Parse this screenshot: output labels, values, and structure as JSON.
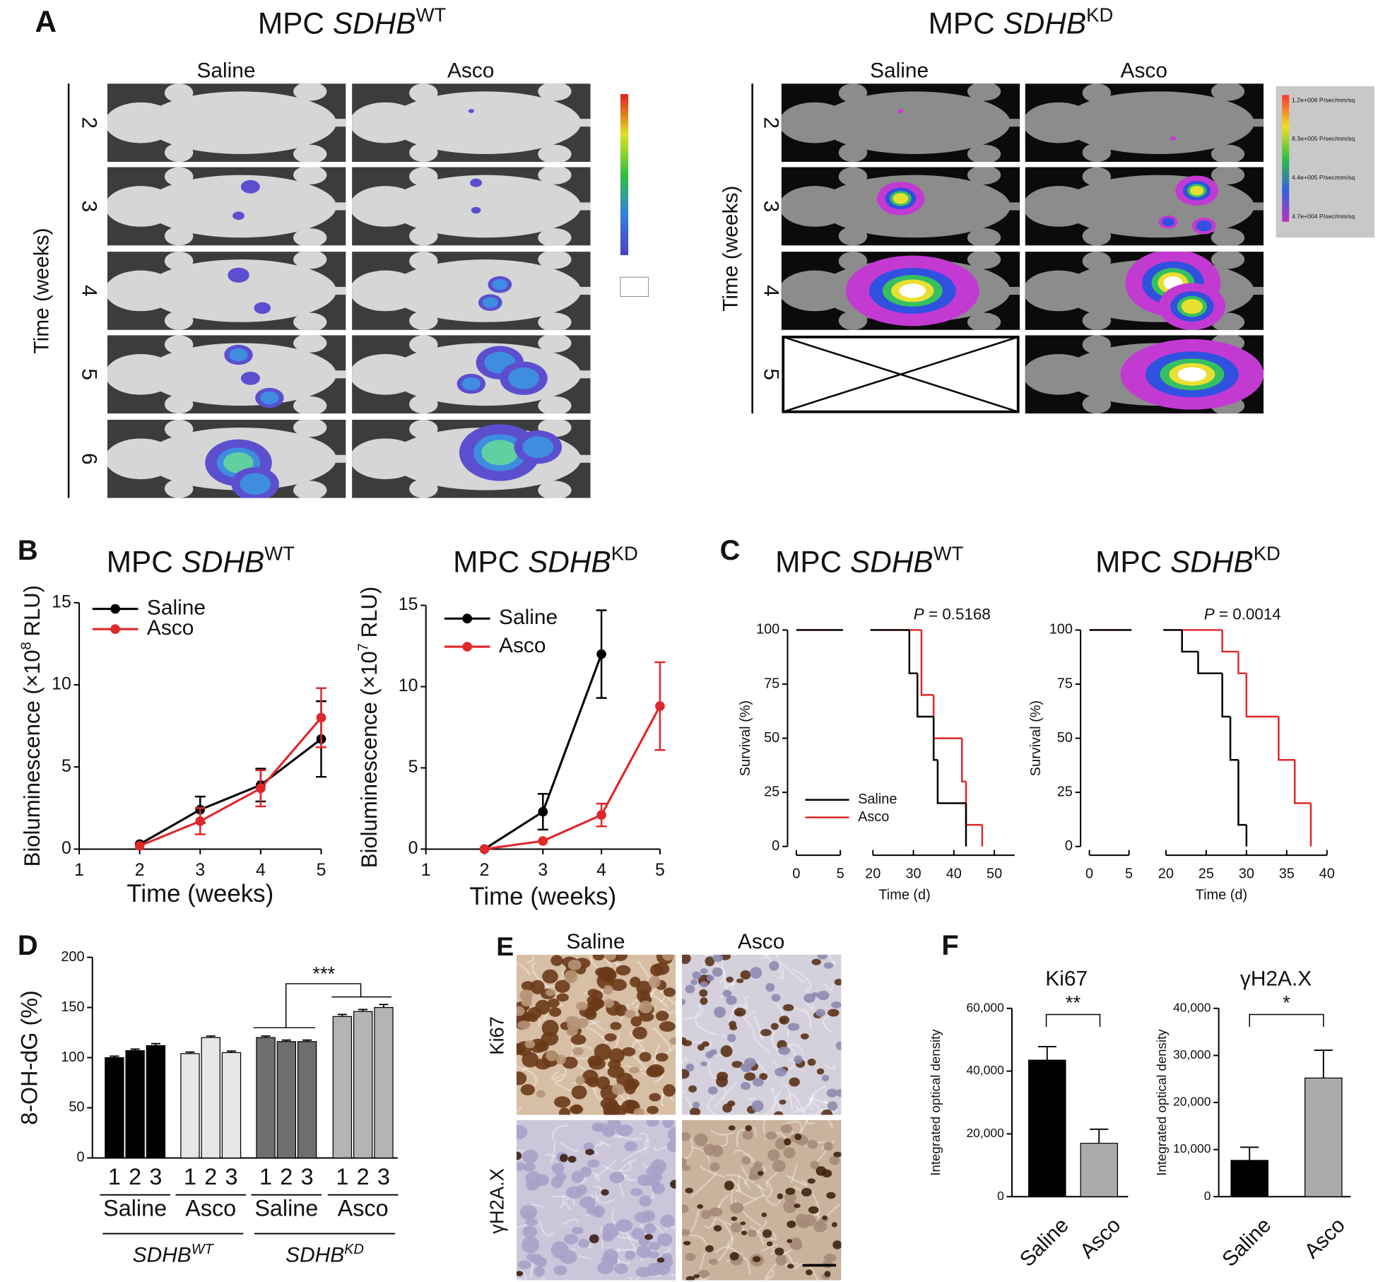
{
  "panel_a": {
    "label": "A",
    "panels": [
      {
        "title": {
          "main": "MPC",
          "gene": "SDHB",
          "sup": "WT"
        },
        "columns": [
          "Saline",
          "Asco"
        ],
        "row_title": "Time (weeks)",
        "rows": [
          "2",
          "3",
          "4",
          "5",
          "6"
        ]
      },
      {
        "title": {
          "main": "MPC",
          "gene": "SDHB",
          "sup": "KD"
        },
        "columns": [
          "Saline",
          "Asco"
        ],
        "row_title": "Time (weeks)",
        "rows": [
          "2",
          "3",
          "4",
          "5"
        ],
        "colorbar_labels": [
          "1.2e+006 P/sec/mm/sq",
          "8.3e+005 P/sec/mm/sq",
          "4.4e+005 P/sec/mm/sq",
          "4.7e+004 P/sec/mm/sq"
        ]
      }
    ]
  },
  "chart_data": [
    {
      "type": "line",
      "panel_label": "B",
      "title": {
        "main": "MPC",
        "gene": "SDHB",
        "sup": "WT"
      },
      "xlabel": "Time (weeks)",
      "ylabel": {
        "text": "Bioluminescence (×10",
        "sup": "8",
        "end": "RLU)"
      },
      "x": [
        2,
        3,
        4,
        5
      ],
      "xlim": [
        1,
        5
      ],
      "xticks": [
        1,
        2,
        3,
        4,
        5
      ],
      "ylim": [
        0,
        15
      ],
      "yticks": [
        0,
        5,
        10,
        15
      ],
      "legend": "upper left",
      "series": [
        {
          "name": "Saline",
          "color": "#000000",
          "values": [
            0.3,
            2.4,
            3.9,
            6.7
          ],
          "errors": [
            null,
            0.8,
            1.0,
            2.3
          ]
        },
        {
          "name": "Asco",
          "color": "#e0272a",
          "values": [
            0.2,
            1.7,
            3.7,
            8.0
          ],
          "errors": [
            null,
            0.8,
            1.1,
            1.8
          ]
        }
      ]
    },
    {
      "type": "line",
      "title": {
        "main": "MPC",
        "gene": "SDHB",
        "sup": "KD"
      },
      "xlabel": "Time (weeks)",
      "ylabel": {
        "text": "Bioluminescence (×10",
        "sup": "7",
        "end": "RLU)"
      },
      "x": [
        2,
        3,
        4,
        5
      ],
      "xlim": [
        1,
        5
      ],
      "xticks": [
        1,
        2,
        3,
        4,
        5
      ],
      "ylim": [
        0,
        15
      ],
      "yticks": [
        0,
        5,
        10,
        15
      ],
      "legend": "upper left",
      "series": [
        {
          "name": "Saline",
          "color": "#000000",
          "values": [
            0.0,
            2.3,
            12.0,
            null
          ],
          "errors": [
            null,
            1.1,
            2.7,
            null
          ]
        },
        {
          "name": "Asco",
          "color": "#e0272a",
          "values": [
            0.0,
            0.5,
            2.1,
            8.8
          ],
          "errors": [
            null,
            null,
            0.7,
            2.7
          ]
        }
      ]
    },
    {
      "type": "survival",
      "panel_label": "C",
      "title": {
        "main": "MPC",
        "gene": "SDHB",
        "sup": "WT"
      },
      "xlabel": "Time (d)",
      "ylabel": "Survival (%)",
      "annotation": {
        "italic": "P",
        "text": "= 0.5168"
      },
      "xlim": [
        0,
        55
      ],
      "xbreak": [
        5,
        20
      ],
      "xticks": [
        0,
        5,
        20,
        30,
        40,
        50
      ],
      "ylim": [
        0,
        100
      ],
      "yticks": [
        0,
        25,
        50,
        75,
        100
      ],
      "legend": "lower left",
      "series": [
        {
          "name": "Saline",
          "color": "#000000",
          "x": [
            0,
            29,
            31,
            35,
            36,
            43
          ],
          "values": [
            100,
            80,
            60,
            40,
            20,
            0
          ]
        },
        {
          "name": "Asco",
          "color": "#e0272a",
          "x": [
            0,
            32,
            35,
            42,
            43,
            47
          ],
          "values": [
            100,
            70,
            50,
            30,
            10,
            0
          ]
        }
      ]
    },
    {
      "type": "survival",
      "title": {
        "main": "MPC",
        "gene": "SDHB",
        "sup": "KD"
      },
      "xlabel": "Time (d)",
      "ylabel": "Survival (%)",
      "annotation": {
        "italic": "P",
        "text": "= 0.0014"
      },
      "xlim": [
        0,
        40
      ],
      "xbreak": [
        5,
        20
      ],
      "xticks": [
        0,
        5,
        20,
        25,
        30,
        35,
        40
      ],
      "ylim": [
        0,
        100
      ],
      "yticks": [
        0,
        25,
        50,
        75,
        100
      ],
      "series": [
        {
          "color": "#000000",
          "x": [
            0,
            22,
            24,
            27,
            28,
            29,
            30
          ],
          "values": [
            100,
            90,
            80,
            60,
            40,
            10,
            0
          ]
        },
        {
          "color": "#e0272a",
          "x": [
            0,
            27,
            29,
            30,
            34,
            36,
            38
          ],
          "values": [
            100,
            90,
            80,
            60,
            40,
            20,
            0
          ]
        }
      ]
    },
    {
      "type": "bar",
      "panel_label": "D",
      "ylabel": "8-OH-dG (%)",
      "categories": [
        "1",
        "2",
        "3"
      ],
      "ylim": [
        0,
        200
      ],
      "yticks": [
        0,
        50,
        100,
        150,
        200
      ],
      "annotation": "***",
      "series": [
        {
          "name": "Saline",
          "color": "#000000",
          "values": [
            100,
            107,
            112
          ],
          "errors": [
            1.5,
            1.5,
            2
          ]
        },
        {
          "name": "Asco",
          "color": "#e6e6e6",
          "values": [
            104,
            120,
            105
          ],
          "errors": [
            1.5,
            1.5,
            1.5
          ]
        },
        {
          "name": "Saline",
          "color": "#6e6e6e",
          "values": [
            120,
            116,
            116
          ],
          "errors": [
            1.5,
            1.5,
            1.5
          ]
        },
        {
          "name": "Asco",
          "color": "#b4b4b4",
          "values": [
            141,
            146,
            150
          ],
          "errors": [
            2,
            2,
            3
          ]
        }
      ],
      "genotypes": [
        {
          "gene": "SDHB",
          "sup": "WT"
        },
        {
          "gene": "SDHB",
          "sup": "KD"
        }
      ]
    },
    {
      "type": "bar",
      "panel_label": "F",
      "title": "Ki67",
      "ylabel": "Integrated optical density",
      "categories": [
        "Saline",
        "Asco"
      ],
      "values": [
        43500,
        17000
      ],
      "errors": [
        4300,
        4500
      ],
      "colors": [
        "#000000",
        "#aaaaaa"
      ],
      "ylim": [
        0,
        60000
      ],
      "yticks": [
        0,
        {
          "value": 20000,
          "label": "20,000"
        },
        {
          "value": 40000,
          "label": "40,000"
        },
        {
          "value": 60000,
          "label": "60,000"
        }
      ],
      "annotation": "**"
    },
    {
      "type": "bar",
      "title": "γH2A.X",
      "ylabel": "Integrated optical density",
      "categories": [
        "Saline",
        "Asco"
      ],
      "values": [
        7700,
        25200
      ],
      "errors": [
        2800,
        5900
      ],
      "colors": [
        "#000000",
        "#aaaaaa"
      ],
      "ylim": [
        0,
        40000
      ],
      "yticks": [
        0,
        {
          "value": 10000,
          "label": "10,000"
        },
        {
          "value": 20000,
          "label": "20,000"
        },
        {
          "value": 30000,
          "label": "30,000"
        },
        {
          "value": 40000,
          "label": "40,000"
        }
      ],
      "annotation": "*"
    }
  ],
  "panel_e": {
    "label": "E",
    "columns": [
      "Saline",
      "Asco"
    ],
    "rows": [
      "Ki67",
      "γH2A.X"
    ]
  }
}
